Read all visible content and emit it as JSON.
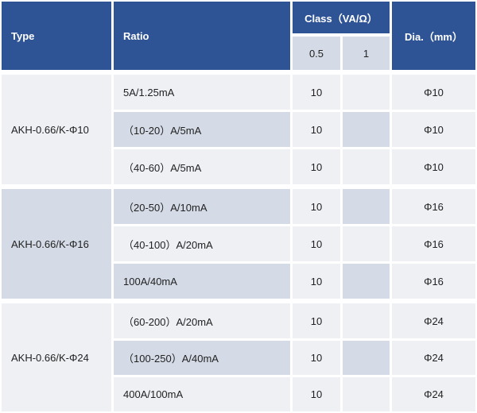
{
  "header": {
    "type": "Type",
    "ratio": "Ratio",
    "class": "Class（VA/Ω）",
    "class_05": "0.5",
    "class_1": "1",
    "dia": "Dia.（mm）"
  },
  "groups": [
    {
      "type": "AKH-0.66/K-Φ10",
      "rows": [
        {
          "ratio": "5A/1.25mA",
          "c05": "10",
          "c1": "",
          "dia": "Φ10"
        },
        {
          "ratio": "（10-20）A/5mA",
          "c05": "10",
          "c1": "",
          "dia": "Φ10"
        },
        {
          "ratio": "（40-60）A/5mA",
          "c05": "10",
          "c1": "",
          "dia": "Φ10"
        }
      ]
    },
    {
      "type": "AKH-0.66/K-Φ16",
      "rows": [
        {
          "ratio": "（20-50）A/10mA",
          "c05": "10",
          "c1": "",
          "dia": "Φ16"
        },
        {
          "ratio": "（40-100）A/20mA",
          "c05": "10",
          "c1": "",
          "dia": "Φ16"
        },
        {
          "ratio": "100A/40mA",
          "c05": "10",
          "c1": "",
          "dia": "Φ16"
        }
      ]
    },
    {
      "type": "AKH-0.66/K-Φ24",
      "rows": [
        {
          "ratio": "（60-200）A/20mA",
          "c05": "10",
          "c1": "",
          "dia": "Φ24"
        },
        {
          "ratio": "（100-250）A/40mA",
          "c05": "10",
          "c1": "",
          "dia": "Φ24"
        },
        {
          "ratio": "400A/100mA",
          "c05": "10",
          "c1": "",
          "dia": "Φ24"
        }
      ]
    }
  ]
}
